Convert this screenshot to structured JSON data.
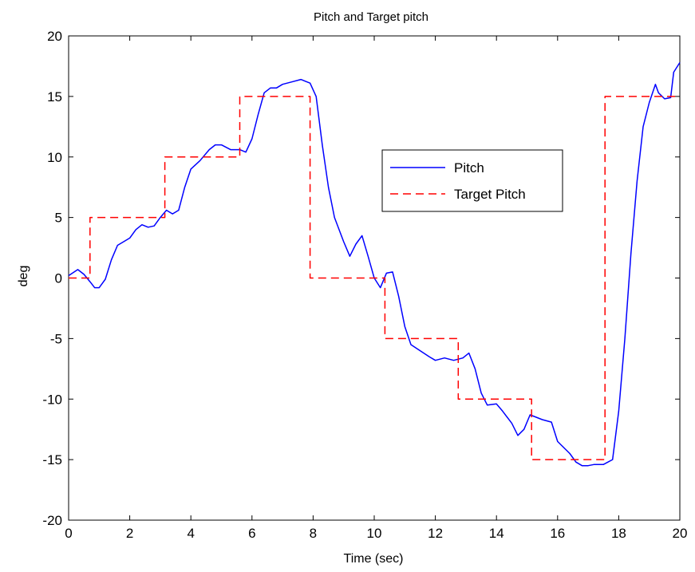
{
  "chart_data": {
    "type": "line",
    "title": "Pitch and Target pitch",
    "xlabel": "Time (sec)",
    "ylabel": "deg",
    "xlim": [
      0,
      20
    ],
    "ylim": [
      -20,
      20
    ],
    "x_ticks": [
      0,
      2,
      4,
      6,
      8,
      10,
      12,
      14,
      16,
      18,
      20
    ],
    "y_ticks": [
      -20,
      -15,
      -10,
      -5,
      0,
      5,
      10,
      15,
      20
    ],
    "x_tick_labels": [
      "0",
      "2",
      "4",
      "6",
      "8",
      "10",
      "12",
      "14",
      "16",
      "18",
      "20"
    ],
    "y_tick_labels": [
      "-20",
      "-15",
      "-10",
      "-5",
      "0",
      "5",
      "10",
      "15",
      "20"
    ],
    "grid": false,
    "legend_position": "center-right",
    "series": [
      {
        "name": "Pitch",
        "color": "#0000ff",
        "style": "solid",
        "points": [
          [
            0.0,
            0.2
          ],
          [
            0.3,
            0.7
          ],
          [
            0.5,
            0.3
          ],
          [
            0.7,
            -0.3
          ],
          [
            0.85,
            -0.8
          ],
          [
            1.0,
            -0.8
          ],
          [
            1.2,
            -0.1
          ],
          [
            1.4,
            1.5
          ],
          [
            1.6,
            2.7
          ],
          [
            1.8,
            3.0
          ],
          [
            2.0,
            3.3
          ],
          [
            2.2,
            4.0
          ],
          [
            2.4,
            4.4
          ],
          [
            2.6,
            4.2
          ],
          [
            2.8,
            4.3
          ],
          [
            3.0,
            5.0
          ],
          [
            3.2,
            5.6
          ],
          [
            3.4,
            5.3
          ],
          [
            3.6,
            5.6
          ],
          [
            3.8,
            7.5
          ],
          [
            4.0,
            9.0
          ],
          [
            4.3,
            9.7
          ],
          [
            4.6,
            10.6
          ],
          [
            4.8,
            11.0
          ],
          [
            5.0,
            11.0
          ],
          [
            5.3,
            10.6
          ],
          [
            5.6,
            10.6
          ],
          [
            5.8,
            10.4
          ],
          [
            6.0,
            11.5
          ],
          [
            6.2,
            13.5
          ],
          [
            6.4,
            15.3
          ],
          [
            6.6,
            15.7
          ],
          [
            6.8,
            15.7
          ],
          [
            7.0,
            16.0
          ],
          [
            7.3,
            16.2
          ],
          [
            7.6,
            16.4
          ],
          [
            7.9,
            16.1
          ],
          [
            8.1,
            15.0
          ],
          [
            8.3,
            11.0
          ],
          [
            8.5,
            7.5
          ],
          [
            8.7,
            5.0
          ],
          [
            9.0,
            3.0
          ],
          [
            9.2,
            1.8
          ],
          [
            9.4,
            2.8
          ],
          [
            9.6,
            3.5
          ],
          [
            9.8,
            1.8
          ],
          [
            10.0,
            0.0
          ],
          [
            10.2,
            -0.8
          ],
          [
            10.4,
            0.4
          ],
          [
            10.6,
            0.5
          ],
          [
            10.8,
            -1.5
          ],
          [
            11.0,
            -4.0
          ],
          [
            11.2,
            -5.5
          ],
          [
            11.5,
            -6.0
          ],
          [
            11.8,
            -6.5
          ],
          [
            12.0,
            -6.8
          ],
          [
            12.3,
            -6.6
          ],
          [
            12.6,
            -6.8
          ],
          [
            12.9,
            -6.6
          ],
          [
            13.1,
            -6.2
          ],
          [
            13.3,
            -7.5
          ],
          [
            13.5,
            -9.5
          ],
          [
            13.7,
            -10.5
          ],
          [
            14.0,
            -10.4
          ],
          [
            14.2,
            -11.0
          ],
          [
            14.5,
            -12.0
          ],
          [
            14.7,
            -13.0
          ],
          [
            14.9,
            -12.5
          ],
          [
            15.1,
            -11.3
          ],
          [
            15.3,
            -11.5
          ],
          [
            15.5,
            -11.7
          ],
          [
            15.8,
            -11.9
          ],
          [
            16.0,
            -13.5
          ],
          [
            16.2,
            -14.0
          ],
          [
            16.4,
            -14.5
          ],
          [
            16.6,
            -15.2
          ],
          [
            16.8,
            -15.5
          ],
          [
            17.0,
            -15.5
          ],
          [
            17.2,
            -15.4
          ],
          [
            17.5,
            -15.4
          ],
          [
            17.8,
            -15.0
          ],
          [
            18.0,
            -11.0
          ],
          [
            18.2,
            -5.0
          ],
          [
            18.4,
            2.0
          ],
          [
            18.6,
            8.0
          ],
          [
            18.8,
            12.5
          ],
          [
            19.0,
            14.5
          ],
          [
            19.2,
            16.0
          ],
          [
            19.3,
            15.3
          ],
          [
            19.5,
            14.8
          ],
          [
            19.7,
            14.9
          ],
          [
            19.8,
            17.0
          ],
          [
            20.0,
            17.8
          ]
        ]
      },
      {
        "name": "Target Pitch",
        "color": "#ff0000",
        "style": "dashed",
        "points": [
          [
            0.0,
            0.0
          ],
          [
            0.7,
            0.0
          ],
          [
            0.7,
            5.0
          ],
          [
            3.15,
            5.0
          ],
          [
            3.15,
            10.0
          ],
          [
            5.6,
            10.0
          ],
          [
            5.6,
            15.0
          ],
          [
            7.9,
            15.0
          ],
          [
            7.9,
            0.0
          ],
          [
            10.35,
            0.0
          ],
          [
            10.35,
            -5.0
          ],
          [
            12.75,
            -5.0
          ],
          [
            12.75,
            -10.0
          ],
          [
            15.15,
            -10.0
          ],
          [
            15.15,
            -15.0
          ],
          [
            17.55,
            -15.0
          ],
          [
            17.55,
            15.0
          ],
          [
            20.0,
            15.0
          ]
        ]
      }
    ]
  }
}
